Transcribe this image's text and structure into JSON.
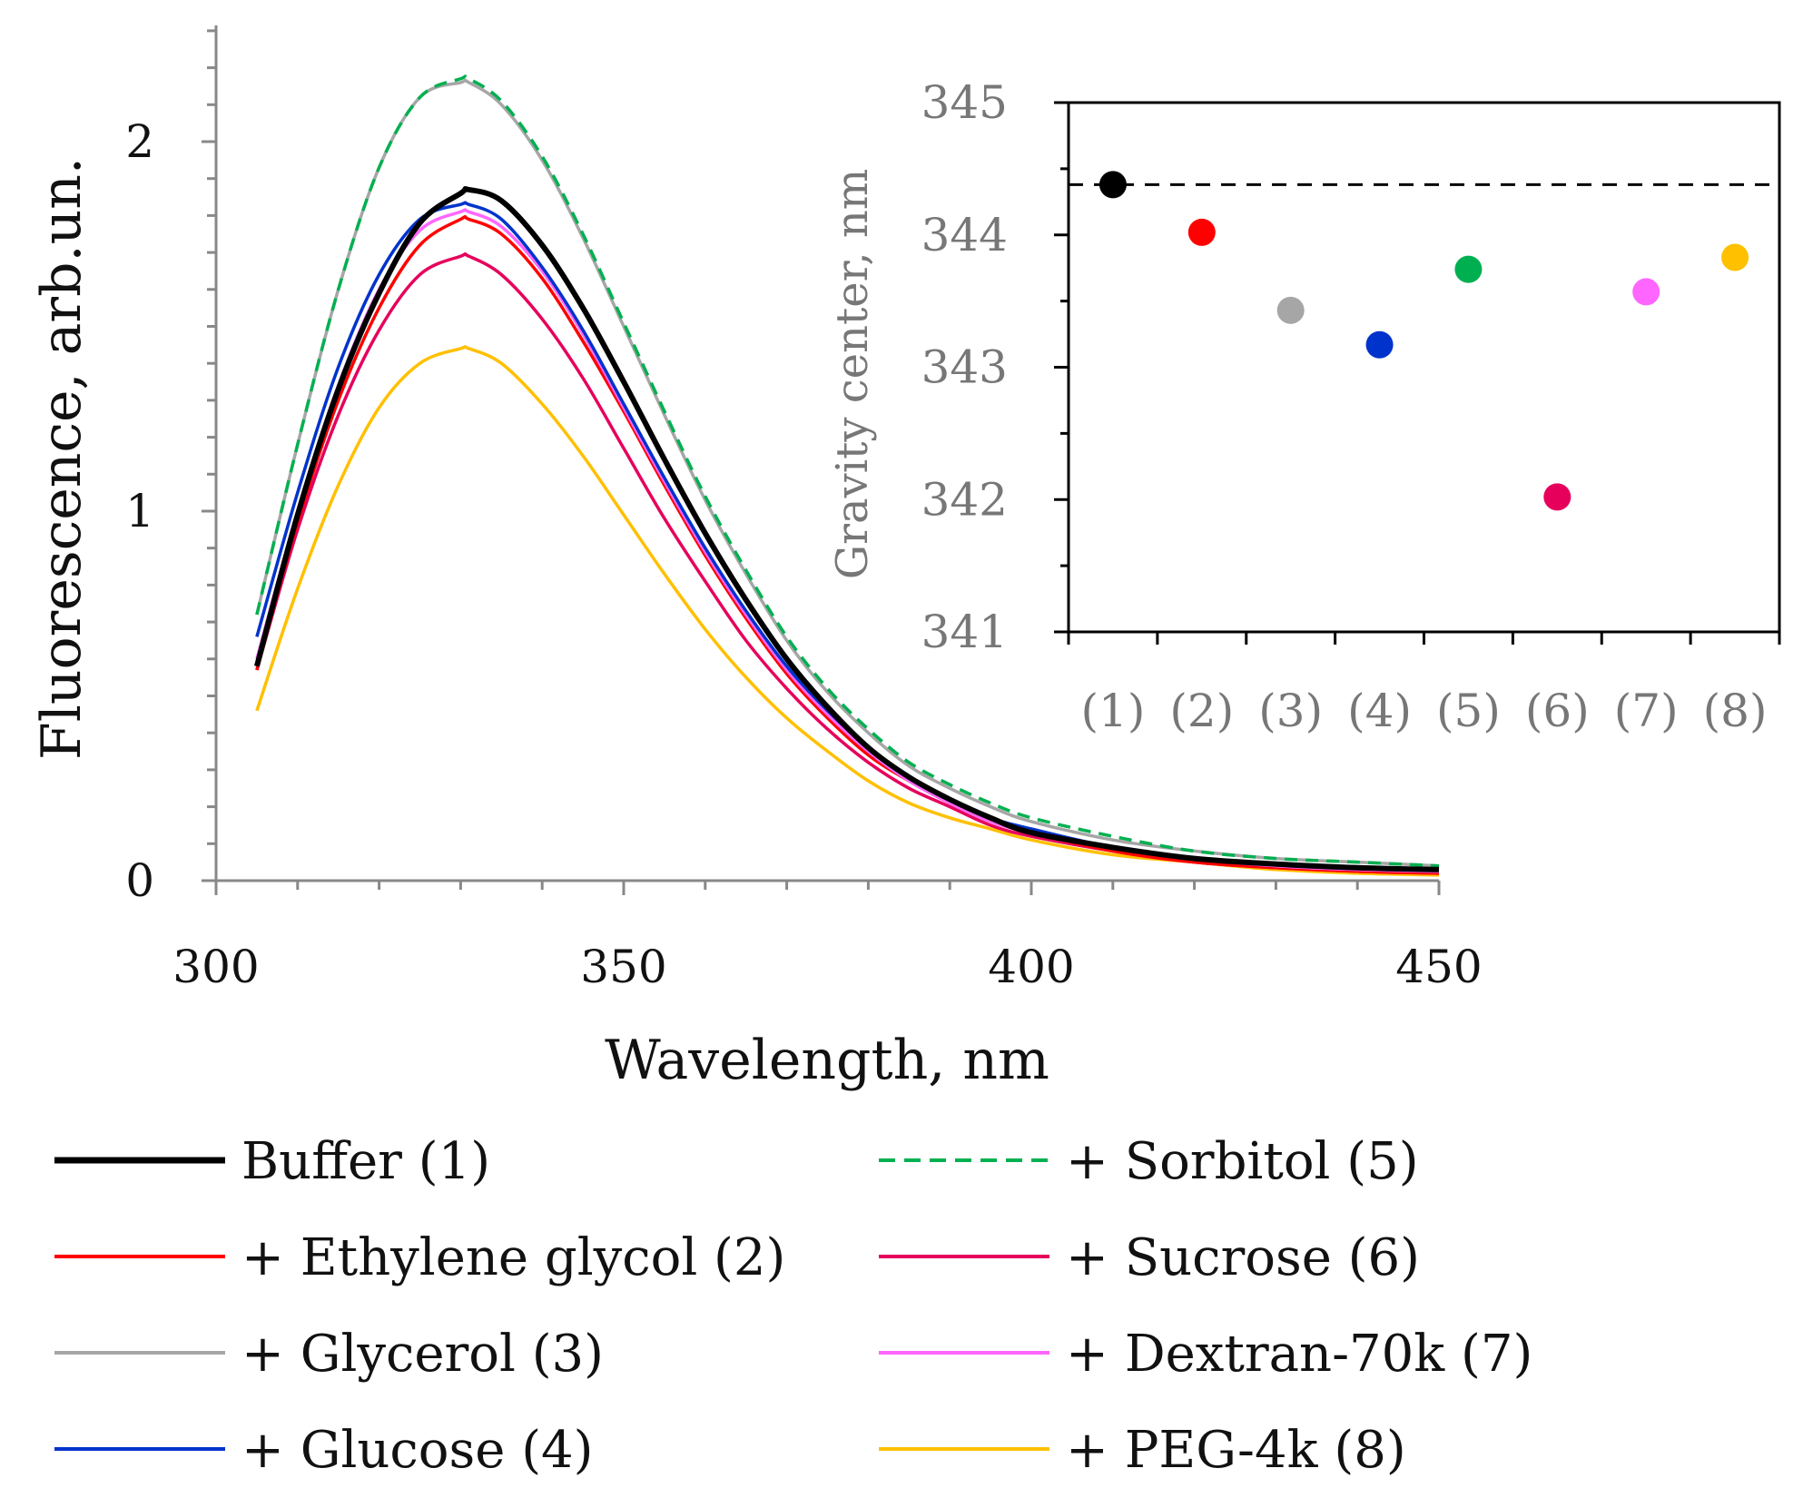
{
  "chart_data": [
    {
      "type": "line",
      "title": "",
      "xlabel": "Wavelength, nm",
      "ylabel": "Fluorescence, arb.un.",
      "xlim": [
        300,
        450
      ],
      "ylim": [
        0,
        2.3
      ],
      "xticks": [
        300,
        350,
        400,
        450
      ],
      "yticks": [
        0,
        1,
        2
      ],
      "x": [
        305,
        310,
        315,
        320,
        325,
        330,
        331,
        335,
        340,
        345,
        350,
        355,
        360,
        365,
        370,
        375,
        380,
        385,
        390,
        395,
        400,
        410,
        420,
        430,
        440,
        450
      ],
      "series": [
        {
          "name": "Buffer (1)",
          "color": "#000000",
          "dash": "solid",
          "values": [
            0.58,
            0.99,
            1.33,
            1.59,
            1.78,
            1.86,
            1.87,
            1.84,
            1.72,
            1.55,
            1.35,
            1.14,
            0.94,
            0.76,
            0.6,
            0.47,
            0.36,
            0.28,
            0.22,
            0.17,
            0.13,
            0.09,
            0.06,
            0.045,
            0.035,
            0.03
          ]
        },
        {
          "name": "+ Ethylene glycol (2)",
          "color": "#ff0000",
          "dash": "solid",
          "values": [
            0.57,
            0.97,
            1.3,
            1.55,
            1.72,
            1.79,
            1.79,
            1.75,
            1.63,
            1.46,
            1.27,
            1.07,
            0.88,
            0.71,
            0.56,
            0.44,
            0.34,
            0.27,
            0.21,
            0.16,
            0.13,
            0.08,
            0.05,
            0.035,
            0.025,
            0.02
          ]
        },
        {
          "name": "+ Glycerol (3)",
          "color": "#a6a6a6",
          "dash": "solid",
          "values": [
            0.72,
            1.18,
            1.6,
            1.93,
            2.12,
            2.16,
            2.16,
            2.1,
            1.95,
            1.74,
            1.5,
            1.26,
            1.03,
            0.83,
            0.65,
            0.51,
            0.4,
            0.31,
            0.25,
            0.2,
            0.16,
            0.11,
            0.08,
            0.06,
            0.05,
            0.04
          ]
        },
        {
          "name": "+ Glucose (4)",
          "color": "#0033cc",
          "dash": "solid",
          "values": [
            0.66,
            1.05,
            1.39,
            1.64,
            1.79,
            1.83,
            1.83,
            1.79,
            1.66,
            1.49,
            1.29,
            1.09,
            0.9,
            0.73,
            0.58,
            0.46,
            0.36,
            0.28,
            0.22,
            0.17,
            0.14,
            0.09,
            0.06,
            0.045,
            0.035,
            0.03
          ]
        },
        {
          "name": "+ Sorbitol (5)",
          "color": "#00b050",
          "dash": "dashed",
          "values": [
            0.72,
            1.18,
            1.6,
            1.93,
            2.12,
            2.17,
            2.17,
            2.11,
            1.96,
            1.75,
            1.51,
            1.27,
            1.04,
            0.84,
            0.66,
            0.52,
            0.41,
            0.32,
            0.26,
            0.21,
            0.17,
            0.12,
            0.08,
            0.06,
            0.05,
            0.04
          ]
        },
        {
          "name": "+ Sucrose (6)",
          "color": "#e6005c",
          "dash": "solid",
          "values": [
            0.57,
            0.95,
            1.26,
            1.49,
            1.64,
            1.69,
            1.69,
            1.64,
            1.52,
            1.36,
            1.17,
            0.98,
            0.81,
            0.65,
            0.52,
            0.41,
            0.32,
            0.25,
            0.2,
            0.15,
            0.12,
            0.08,
            0.05,
            0.035,
            0.025,
            0.02
          ]
        },
        {
          "name": "+ Dextran-70k (7)",
          "color": "#ff66ff",
          "dash": "solid",
          "values": [
            0.6,
            1.0,
            1.34,
            1.6,
            1.76,
            1.81,
            1.81,
            1.77,
            1.65,
            1.48,
            1.28,
            1.08,
            0.89,
            0.72,
            0.57,
            0.45,
            0.35,
            0.27,
            0.21,
            0.16,
            0.13,
            0.09,
            0.06,
            0.04,
            0.03,
            0.025
          ]
        },
        {
          "name": "+ PEG-4k (8)",
          "color": "#ffc000",
          "dash": "solid",
          "values": [
            0.46,
            0.79,
            1.07,
            1.28,
            1.4,
            1.44,
            1.44,
            1.4,
            1.29,
            1.15,
            0.99,
            0.83,
            0.68,
            0.55,
            0.44,
            0.35,
            0.27,
            0.21,
            0.17,
            0.14,
            0.11,
            0.07,
            0.05,
            0.03,
            0.02,
            0.015
          ]
        }
      ],
      "legend": "below-plot"
    },
    {
      "type": "scatter",
      "title": "",
      "xlabel": "",
      "ylabel": "Gravity center, nm",
      "ylim": [
        341,
        345
      ],
      "yticks": [
        341,
        342,
        343,
        344,
        345
      ],
      "categories": [
        "(1)",
        "(2)",
        "(3)",
        "(4)",
        "(5)",
        "(6)",
        "(7)",
        "(8)"
      ],
      "values": [
        344.38,
        344.02,
        343.43,
        343.17,
        343.74,
        342.02,
        343.57,
        343.83
      ],
      "colors": [
        "#000000",
        "#ff0000",
        "#a6a6a6",
        "#0033cc",
        "#00b050",
        "#e6005c",
        "#ff66ff",
        "#ffc000"
      ],
      "reference_line": {
        "value": 344.38,
        "style": "dashed",
        "color": "#000000"
      },
      "legend": "none"
    }
  ]
}
